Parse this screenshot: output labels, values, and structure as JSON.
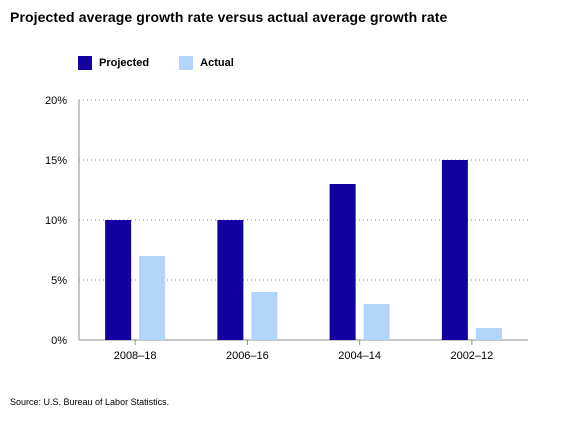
{
  "chart_data": {
    "type": "bar",
    "title": "Projected average growth rate versus actual average growth rate",
    "categories": [
      "2008–18",
      "2006–16",
      "2004–14",
      "2002–12"
    ],
    "series": [
      {
        "name": "Projected",
        "values": [
          10,
          10,
          13,
          15
        ],
        "color": "#1300a1"
      },
      {
        "name": "Actual",
        "values": [
          7,
          4,
          3,
          1
        ],
        "color": "#b3d4fb"
      }
    ],
    "ylim": [
      0,
      20
    ],
    "yticks": [
      0,
      5,
      10,
      15,
      20
    ],
    "ytick_labels": [
      "0%",
      "5%",
      "10%",
      "15%",
      "20%"
    ],
    "xlabel": "",
    "ylabel": "",
    "grid": true,
    "legend_position": "top-left"
  },
  "source": "Source: U.S. Bureau of Labor Statistics."
}
